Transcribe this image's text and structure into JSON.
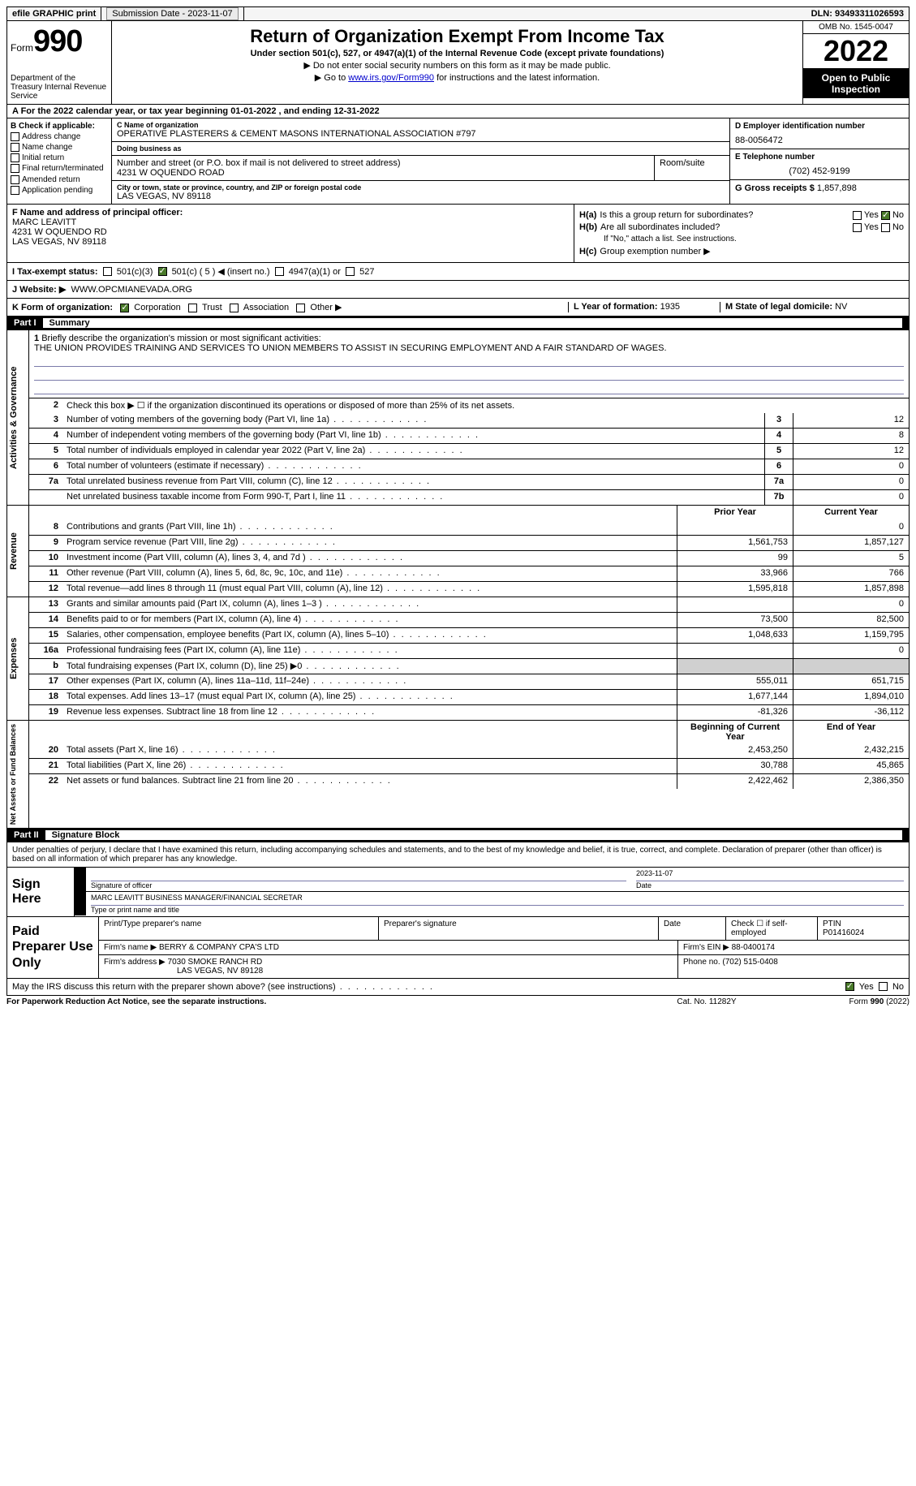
{
  "topbar": {
    "efile": "efile GRAPHIC print",
    "submission_label": "Submission Date - 2023-11-07",
    "dln_label": "DLN: 93493311026593"
  },
  "header": {
    "form_word": "Form",
    "form_number": "990",
    "dept": "Department of the Treasury\nInternal Revenue Service",
    "title": "Return of Organization Exempt From Income Tax",
    "subtitle": "Under section 501(c), 527, or 4947(a)(1) of the Internal Revenue Code (except private foundations)",
    "warn": "▶ Do not enter social security numbers on this form as it may be made public.",
    "goto_pre": "▶ Go to ",
    "goto_link": "www.irs.gov/Form990",
    "goto_post": " for instructions and the latest information.",
    "omb": "OMB No. 1545-0047",
    "year": "2022",
    "open": "Open to Public Inspection"
  },
  "row_a": "A For the 2022 calendar year, or tax year beginning 01-01-2022   , and ending 12-31-2022",
  "col_b": {
    "hdr": "B Check if applicable:",
    "items": [
      "Address change",
      "Name change",
      "Initial return",
      "Final return/terminated",
      "Amended return",
      "Application pending"
    ]
  },
  "col_c": {
    "name_lbl": "C Name of organization",
    "name": "OPERATIVE PLASTERERS & CEMENT MASONS INTERNATIONAL ASSOCIATION #797",
    "dba_lbl": "Doing business as",
    "dba": "",
    "addr_lbl": "Number and street (or P.O. box if mail is not delivered to street address)",
    "addr": "4231 W OQUENDO ROAD",
    "room_lbl": "Room/suite",
    "room": "",
    "city_lbl": "City or town, state or province, country, and ZIP or foreign postal code",
    "city": "LAS VEGAS, NV  89118"
  },
  "col_d": {
    "ein_lbl": "D Employer identification number",
    "ein": "88-0056472",
    "tel_lbl": "E Telephone number",
    "tel": "(702) 452-9199",
    "gross_lbl": "G Gross receipts $",
    "gross": "1,857,898"
  },
  "section_f": {
    "lbl": "F  Name and address of principal officer:",
    "name": "MARC LEAVITT",
    "addr1": "4231 W OQUENDO RD",
    "addr2": "LAS VEGAS, NV  89118"
  },
  "section_h": {
    "ha_lbl": "H(a)",
    "ha_txt": "Is this a group return for subordinates?",
    "hb_lbl": "H(b)",
    "hb_txt": "Are all subordinates included?",
    "hb_note": "If \"No,\" attach a list. See instructions.",
    "hc_lbl": "H(c)",
    "hc_txt": "Group exemption number ▶",
    "yes": "Yes",
    "no": "No"
  },
  "status": {
    "lbl": "I  Tax-exempt status:",
    "o1": "501(c)(3)",
    "o2": "501(c) ( 5 ) ◀ (insert no.)",
    "o3": "4947(a)(1) or",
    "o4": "527"
  },
  "website": {
    "lbl": "J  Website: ▶",
    "val": "WWW.OPCMIANEVADA.ORG"
  },
  "kform": {
    "lbl": "K Form of organization:",
    "corp": "Corporation",
    "trust": "Trust",
    "assoc": "Association",
    "other": "Other ▶",
    "l_lbl": "L Year of formation:",
    "l_val": "1935",
    "m_lbl": "M State of legal domicile:",
    "m_val": "NV"
  },
  "part1": {
    "num": "Part I",
    "title": "Summary"
  },
  "summary": {
    "sec1_label": "Activities & Governance",
    "sec2_label": "Revenue",
    "sec3_label": "Expenses",
    "sec4_label": "Net Assets or Fund Balances",
    "l1_num": "1",
    "l1": "Briefly describe the organization's mission or most significant activities:",
    "l1_val": "THE UNION PROVIDES TRAINING AND SERVICES TO UNION MEMBERS TO ASSIST IN SECURING EMPLOYMENT AND A FAIR STANDARD OF WAGES.",
    "l2_num": "2",
    "l2": "Check this box ▶ ☐ if the organization discontinued its operations or disposed of more than 25% of its net assets.",
    "lines_gov": [
      {
        "n": "3",
        "d": "Number of voting members of the governing body (Part VI, line 1a)",
        "b": "3",
        "v": "12"
      },
      {
        "n": "4",
        "d": "Number of independent voting members of the governing body (Part VI, line 1b)",
        "b": "4",
        "v": "8"
      },
      {
        "n": "5",
        "d": "Total number of individuals employed in calendar year 2022 (Part V, line 2a)",
        "b": "5",
        "v": "12"
      },
      {
        "n": "6",
        "d": "Total number of volunteers (estimate if necessary)",
        "b": "6",
        "v": "0"
      },
      {
        "n": "7a",
        "d": "Total unrelated business revenue from Part VIII, column (C), line 12",
        "b": "7a",
        "v": "0"
      },
      {
        "n": "",
        "d": "Net unrelated business taxable income from Form 990-T, Part I, line 11",
        "b": "7b",
        "v": "0"
      }
    ],
    "prior_hdr": "Prior Year",
    "curr_hdr": "Current Year",
    "lines_rev": [
      {
        "n": "8",
        "d": "Contributions and grants (Part VIII, line 1h)",
        "p": "",
        "c": "0"
      },
      {
        "n": "9",
        "d": "Program service revenue (Part VIII, line 2g)",
        "p": "1,561,753",
        "c": "1,857,127"
      },
      {
        "n": "10",
        "d": "Investment income (Part VIII, column (A), lines 3, 4, and 7d )",
        "p": "99",
        "c": "5"
      },
      {
        "n": "11",
        "d": "Other revenue (Part VIII, column (A), lines 5, 6d, 8c, 9c, 10c, and 11e)",
        "p": "33,966",
        "c": "766"
      },
      {
        "n": "12",
        "d": "Total revenue—add lines 8 through 11 (must equal Part VIII, column (A), line 12)",
        "p": "1,595,818",
        "c": "1,857,898"
      }
    ],
    "lines_exp": [
      {
        "n": "13",
        "d": "Grants and similar amounts paid (Part IX, column (A), lines 1–3 )",
        "p": "",
        "c": "0"
      },
      {
        "n": "14",
        "d": "Benefits paid to or for members (Part IX, column (A), line 4)",
        "p": "73,500",
        "c": "82,500"
      },
      {
        "n": "15",
        "d": "Salaries, other compensation, employee benefits (Part IX, column (A), lines 5–10)",
        "p": "1,048,633",
        "c": "1,159,795"
      },
      {
        "n": "16a",
        "d": "Professional fundraising fees (Part IX, column (A), line 11e)",
        "p": "",
        "c": "0"
      },
      {
        "n": "b",
        "d": "Total fundraising expenses (Part IX, column (D), line 25) ▶0",
        "p": "shade",
        "c": "shade"
      },
      {
        "n": "17",
        "d": "Other expenses (Part IX, column (A), lines 11a–11d, 11f–24e)",
        "p": "555,011",
        "c": "651,715"
      },
      {
        "n": "18",
        "d": "Total expenses. Add lines 13–17 (must equal Part IX, column (A), line 25)",
        "p": "1,677,144",
        "c": "1,894,010"
      },
      {
        "n": "19",
        "d": "Revenue less expenses. Subtract line 18 from line 12",
        "p": "-81,326",
        "c": "-36,112"
      }
    ],
    "beg_hdr": "Beginning of Current Year",
    "end_hdr": "End of Year",
    "lines_net": [
      {
        "n": "20",
        "d": "Total assets (Part X, line 16)",
        "p": "2,453,250",
        "c": "2,432,215"
      },
      {
        "n": "21",
        "d": "Total liabilities (Part X, line 26)",
        "p": "30,788",
        "c": "45,865"
      },
      {
        "n": "22",
        "d": "Net assets or fund balances. Subtract line 21 from line 20",
        "p": "2,422,462",
        "c": "2,386,350"
      }
    ]
  },
  "part2": {
    "num": "Part II",
    "title": "Signature Block"
  },
  "sig_intro": "Under penalties of perjury, I declare that I have examined this return, including accompanying schedules and statements, and to the best of my knowledge and belief, it is true, correct, and complete. Declaration of preparer (other than officer) is based on all information of which preparer has any knowledge.",
  "sign": {
    "here": "Sign Here",
    "sig_lbl": "Signature of officer",
    "date_lbl": "Date",
    "date_val": "2023-11-07",
    "name_val": "MARC LEAVITT  BUSINESS MANAGER/FINANCIAL SECRETAR",
    "name_lbl": "Type or print name and title"
  },
  "prep": {
    "title": "Paid Preparer Use Only",
    "r1c1_lbl": "Print/Type preparer's name",
    "r1c2_lbl": "Preparer's signature",
    "r1c3_lbl": "Date",
    "r1c4_lbl": "Check ☐ if self-employed",
    "r1c5_lbl": "PTIN",
    "r1c5_val": "P01416024",
    "r2_lbl": "Firm's name    ▶",
    "r2_val": "BERRY & COMPANY CPA'S LTD",
    "r2_ein_lbl": "Firm's EIN ▶",
    "r2_ein_val": "88-0400174",
    "r3_lbl": "Firm's address ▶",
    "r3_val1": "7030 SMOKE RANCH RD",
    "r3_val2": "LAS VEGAS, NV  89128",
    "r3_ph_lbl": "Phone no.",
    "r3_ph_val": "(702) 515-0408"
  },
  "discuss": {
    "txt": "May the IRS discuss this return with the preparer shown above? (see instructions)",
    "yes": "Yes",
    "no": "No"
  },
  "footer": {
    "left": "For Paperwork Reduction Act Notice, see the separate instructions.",
    "mid": "Cat. No. 11282Y",
    "right": "Form 990 (2022)"
  }
}
